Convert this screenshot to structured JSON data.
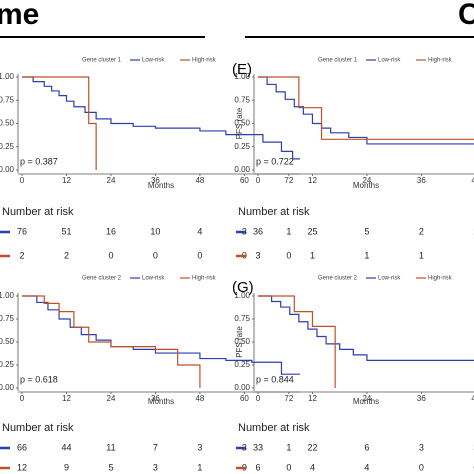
{
  "header": {
    "left": "me",
    "right": "C"
  },
  "chart_data": [
    {
      "type": "line",
      "legend_title": "Gene cluster 1",
      "xlabel": "Months",
      "annotation": "p = 0.387",
      "series": [
        {
          "name": "Low-risk",
          "color": "#2b3fb0",
          "x": [
            0,
            3,
            6,
            8,
            10,
            12,
            14,
            17,
            20,
            24,
            30,
            36,
            48,
            55,
            65,
            70,
            73,
            75
          ],
          "values": [
            1,
            0.95,
            0.9,
            0.85,
            0.8,
            0.74,
            0.68,
            0.62,
            0.55,
            0.5,
            0.47,
            0.45,
            0.42,
            0.38,
            0.3,
            0.2,
            0.12,
            0.12
          ]
        },
        {
          "name": "High-risk",
          "color": "#c0502a",
          "x": [
            0,
            18,
            20
          ],
          "values": [
            1,
            0.5,
            0
          ]
        }
      ],
      "xlim": [
        0,
        75
      ],
      "xticks": [
        0,
        12,
        24,
        36,
        48,
        60,
        72
      ],
      "ylim": [
        0,
        1
      ],
      "yticks": [
        {
          "value": 0,
          "label": "0.00"
        },
        {
          "value": 0.25,
          "label": "0.25"
        },
        {
          "value": 0.5,
          "label": "0.50"
        },
        {
          "value": 0.75,
          "label": "0.75"
        },
        {
          "value": 1,
          "label": "1.00"
        }
      ],
      "risk_table": {
        "title": "Number at risk",
        "rows": [
          [
            76,
            51,
            16,
            10,
            4,
            3,
            1
          ],
          [
            2,
            2,
            0,
            0,
            0,
            0,
            0
          ]
        ]
      }
    },
    {
      "type": "line",
      "panel_label": "(E)",
      "legend_title": "Gene cluster 1",
      "xlabel": "Months",
      "ylabel": "PFS rate",
      "annotation": "p = 0.722",
      "series": [
        {
          "name": "Low-risk",
          "color": "#2b3fb0",
          "x": [
            0,
            2,
            4,
            6,
            8,
            10,
            12,
            14,
            16,
            20,
            24,
            52
          ],
          "values": [
            1,
            0.92,
            0.84,
            0.76,
            0.68,
            0.6,
            0.5,
            0.45,
            0.4,
            0.35,
            0.28,
            0.28
          ]
        },
        {
          "name": "High-risk",
          "color": "#c0502a",
          "x": [
            0,
            9,
            14,
            52
          ],
          "values": [
            1,
            0.67,
            0.33,
            0.33
          ]
        }
      ],
      "xlim": [
        0,
        52
      ],
      "xticks": [
        0,
        12,
        24,
        36,
        48
      ],
      "ylim": [
        0,
        1
      ],
      "yticks": [
        {
          "value": 0,
          "label": "0.00"
        },
        {
          "value": 0.25,
          "label": "0.25"
        },
        {
          "value": 0.5,
          "label": "0.50"
        },
        {
          "value": 0.75,
          "label": "0.75"
        },
        {
          "value": 1,
          "label": "1.00"
        }
      ],
      "risk_table": {
        "title": "Number at risk",
        "rows": [
          [
            36,
            25,
            5,
            2,
            2
          ],
          [
            3,
            1,
            1,
            1,
            1
          ]
        ]
      }
    },
    {
      "type": "line",
      "legend_title": "Gene cluster 2",
      "xlabel": "Months",
      "annotation": "p = 0.618",
      "series": [
        {
          "name": "Low-risk",
          "color": "#2b3fb0",
          "x": [
            0,
            4,
            7,
            10,
            13,
            16,
            20,
            24,
            30,
            36,
            48,
            55,
            62,
            70,
            75
          ],
          "values": [
            1,
            0.93,
            0.85,
            0.75,
            0.66,
            0.58,
            0.52,
            0.45,
            0.42,
            0.38,
            0.32,
            0.3,
            0.28,
            0.15,
            0.15
          ]
        },
        {
          "name": "High-risk",
          "color": "#c0502a",
          "x": [
            0,
            6,
            10,
            14,
            18,
            24,
            36,
            42,
            48
          ],
          "values": [
            1,
            0.92,
            0.83,
            0.66,
            0.5,
            0.45,
            0.42,
            0.25,
            0
          ]
        }
      ],
      "xlim": [
        0,
        75
      ],
      "xticks": [
        0,
        12,
        24,
        36,
        48,
        60,
        72
      ],
      "ylim": [
        0,
        1
      ],
      "yticks": [
        {
          "value": 0,
          "label": "0.00"
        },
        {
          "value": 0.25,
          "label": "0.25"
        },
        {
          "value": 0.5,
          "label": "0.50"
        },
        {
          "value": 0.75,
          "label": "0.75"
        },
        {
          "value": 1,
          "label": "1.00"
        }
      ],
      "risk_table": {
        "title": "Number at risk",
        "rows": [
          [
            66,
            44,
            11,
            7,
            3,
            3,
            1
          ],
          [
            12,
            9,
            5,
            3,
            1,
            0,
            0
          ]
        ]
      }
    },
    {
      "type": "line",
      "panel_label": "(G)",
      "legend_title": "Gene cluster 2",
      "xlabel": "Months",
      "ylabel": "PFS rate",
      "annotation": "p = 0.844",
      "series": [
        {
          "name": "Low-risk",
          "color": "#2b3fb0",
          "x": [
            0,
            3,
            5,
            7,
            9,
            11,
            13,
            15,
            18,
            21,
            24,
            52
          ],
          "values": [
            1,
            0.94,
            0.88,
            0.8,
            0.72,
            0.64,
            0.56,
            0.48,
            0.42,
            0.36,
            0.3,
            0.3
          ]
        },
        {
          "name": "High-risk",
          "color": "#c0502a",
          "x": [
            0,
            8,
            12,
            17
          ],
          "values": [
            1,
            0.83,
            0.67,
            0
          ]
        }
      ],
      "xlim": [
        0,
        52
      ],
      "xticks": [
        0,
        12,
        24,
        36,
        48
      ],
      "ylim": [
        0,
        1
      ],
      "yticks": [
        {
          "value": 0,
          "label": "0.00"
        },
        {
          "value": 0.25,
          "label": "0.25"
        },
        {
          "value": 0.5,
          "label": "0.50"
        },
        {
          "value": 0.75,
          "label": "0.75"
        },
        {
          "value": 1,
          "label": "1.00"
        }
      ],
      "risk_table": {
        "title": "Number at risk",
        "rows": [
          [
            33,
            22,
            6,
            3,
            3
          ],
          [
            6,
            4,
            4,
            0,
            0
          ]
        ]
      }
    }
  ]
}
